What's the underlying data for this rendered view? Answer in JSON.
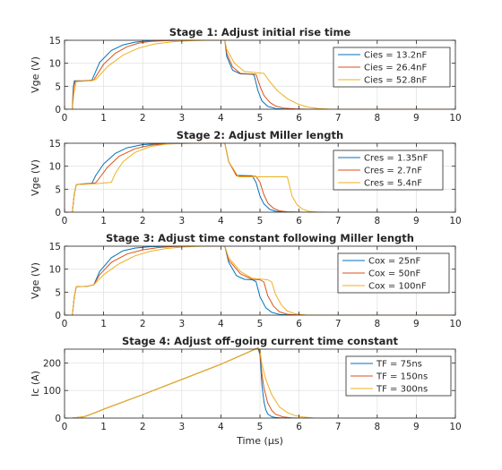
{
  "figure": {
    "xlabel": "Time (μs)",
    "background": "#ffffff",
    "axis_color": "#262626",
    "grid_color": "#e3e3e3",
    "series_colors": [
      "#0072bd",
      "#d95319",
      "#edb120"
    ]
  },
  "chart_data": [
    {
      "type": "line",
      "title": "Stage 1: Adjust initial rise time",
      "ylabel": "Vge (V)",
      "xlim": [
        0,
        10
      ],
      "ylim": [
        0,
        15
      ],
      "xticks": [
        0,
        1,
        2,
        3,
        4,
        5,
        6,
        7,
        8,
        9,
        10
      ],
      "yticks": [
        0,
        5,
        10,
        15
      ],
      "grid": true,
      "legend_position": "top-right",
      "series": [
        {
          "name": "Cies = 13.2nF",
          "x": [
            0,
            0.2,
            0.22,
            0.25,
            0.5,
            0.7,
            0.9,
            1.2,
            1.5,
            1.8,
            2.1,
            2.5,
            3,
            4.1,
            4.15,
            4.3,
            4.5,
            4.8,
            4.85,
            4.95,
            5.05,
            5.2,
            5.4,
            5.6,
            6,
            10
          ],
          "y": [
            0,
            0,
            4.5,
            6.2,
            6.2,
            6.3,
            10.2,
            12.8,
            14,
            14.6,
            14.85,
            14.95,
            15,
            15,
            11.5,
            8.5,
            7.7,
            7.6,
            7.4,
            4,
            1.8,
            0.6,
            0.15,
            0.05,
            0,
            0
          ]
        },
        {
          "name": "Cies = 26.4nF",
          "x": [
            0,
            0.2,
            0.23,
            0.27,
            0.6,
            0.75,
            1.0,
            1.3,
            1.6,
            1.9,
            2.2,
            2.6,
            3,
            4.1,
            4.15,
            4.3,
            4.5,
            4.9,
            5.0,
            5.1,
            5.25,
            5.4,
            5.6,
            5.9,
            6.2,
            10
          ],
          "y": [
            0,
            0,
            4.5,
            6.1,
            6.2,
            6.4,
            9.8,
            12.2,
            13.6,
            14.4,
            14.75,
            14.92,
            15,
            15,
            12.2,
            9.2,
            7.8,
            7.6,
            5,
            3,
            1.5,
            0.7,
            0.25,
            0.08,
            0,
            0
          ]
        },
        {
          "name": "Cies = 52.8nF",
          "x": [
            0,
            0.2,
            0.24,
            0.3,
            0.7,
            0.8,
            1.1,
            1.5,
            1.9,
            2.3,
            2.8,
            3.3,
            3.6,
            4.1,
            4.15,
            4.35,
            4.6,
            5.1,
            5.25,
            5.45,
            5.7,
            5.95,
            6.2,
            6.5,
            6.8,
            10
          ],
          "y": [
            0,
            0,
            3.5,
            6.0,
            6.2,
            6.5,
            9.3,
            11.8,
            13.3,
            14.2,
            14.7,
            14.92,
            15,
            15,
            13,
            10,
            8.2,
            7.8,
            6,
            4,
            2.3,
            1.2,
            0.5,
            0.15,
            0,
            0
          ]
        }
      ]
    },
    {
      "type": "line",
      "title": "Stage 2: Adjust Miller length",
      "ylabel": "Vge (V)",
      "xlim": [
        0,
        10
      ],
      "ylim": [
        0,
        15
      ],
      "xticks": [
        0,
        1,
        2,
        3,
        4,
        5,
        6,
        7,
        8,
        9,
        10
      ],
      "yticks": [
        0,
        5,
        10,
        15
      ],
      "grid": true,
      "legend_position": "top-right",
      "series": [
        {
          "name": "Cres = 1.35nF",
          "x": [
            0,
            0.2,
            0.25,
            0.3,
            0.5,
            0.7,
            0.8,
            1.0,
            1.3,
            1.6,
            2.0,
            2.5,
            3,
            4.1,
            4.2,
            4.4,
            4.8,
            4.9,
            5.0,
            5.1,
            5.25,
            5.4,
            5.6,
            6,
            10
          ],
          "y": [
            0,
            0,
            4,
            6,
            6.2,
            6.3,
            8,
            10.5,
            12.8,
            14,
            14.7,
            14.95,
            15,
            15,
            11,
            8.0,
            7.9,
            6.5,
            3.5,
            1.8,
            0.6,
            0.2,
            0.05,
            0,
            0
          ]
        },
        {
          "name": "Cres = 2.7nF",
          "x": [
            0,
            0.2,
            0.25,
            0.3,
            0.6,
            0.8,
            0.9,
            1.1,
            1.4,
            1.8,
            2.2,
            2.7,
            3.2,
            4.1,
            4.2,
            4.4,
            4.9,
            5.0,
            5.1,
            5.2,
            5.35,
            5.5,
            5.7,
            6.1,
            10
          ],
          "y": [
            0,
            0,
            4,
            6,
            6.2,
            6.4,
            7.5,
            9.8,
            12.2,
            13.8,
            14.6,
            14.92,
            15,
            15,
            11,
            7.9,
            7.8,
            6.5,
            3.8,
            2.0,
            0.8,
            0.3,
            0.08,
            0,
            0
          ]
        },
        {
          "name": "Cres = 5.4nF",
          "x": [
            0,
            0.2,
            0.25,
            0.3,
            0.8,
            1.2,
            1.3,
            1.5,
            1.8,
            2.2,
            2.6,
            3.0,
            3.3,
            4.1,
            4.2,
            4.45,
            5.7,
            5.75,
            5.82,
            5.95,
            6.1,
            6.25,
            6.45,
            6.8,
            10
          ],
          "y": [
            0,
            0,
            4,
            6,
            6.2,
            6.5,
            8.5,
            11,
            13,
            14.3,
            14.8,
            14.95,
            15,
            15,
            11,
            7.7,
            7.7,
            6,
            3.5,
            1.6,
            0.6,
            0.2,
            0.05,
            0,
            0
          ]
        }
      ]
    },
    {
      "type": "line",
      "title": "Stage 3: Adjust time constant following Miller length",
      "ylabel": "Vge (V)",
      "xlim": [
        0,
        10
      ],
      "ylim": [
        0,
        15
      ],
      "xticks": [
        0,
        1,
        2,
        3,
        4,
        5,
        6,
        7,
        8,
        9,
        10
      ],
      "yticks": [
        0,
        5,
        10,
        15
      ],
      "grid": true,
      "legend_position": "top-right",
      "series": [
        {
          "name": "Cox = 25nF",
          "x": [
            0,
            0.2,
            0.25,
            0.3,
            0.6,
            0.75,
            0.9,
            1.2,
            1.5,
            1.8,
            2.2,
            2.6,
            3.0,
            4.1,
            4.2,
            4.4,
            4.6,
            4.8,
            4.9,
            5.0,
            5.15,
            5.3,
            5.5,
            5.8,
            10
          ],
          "y": [
            0,
            0,
            4,
            6.2,
            6.3,
            6.6,
            9.5,
            12.5,
            14,
            14.6,
            14.9,
            14.97,
            15,
            15,
            11.5,
            8.6,
            7.8,
            7.7,
            7.3,
            4,
            1.6,
            0.6,
            0.15,
            0,
            0
          ]
        },
        {
          "name": "Cox = 50nF",
          "x": [
            0,
            0.2,
            0.25,
            0.3,
            0.6,
            0.75,
            0.9,
            1.2,
            1.6,
            2.0,
            2.4,
            2.8,
            3.2,
            4.1,
            4.2,
            4.5,
            4.8,
            5.0,
            5.1,
            5.2,
            5.35,
            5.5,
            5.7,
            6.0,
            10
          ],
          "y": [
            0,
            0,
            4,
            6.2,
            6.3,
            6.6,
            8.8,
            11.5,
            13.3,
            14.2,
            14.7,
            14.92,
            15,
            15,
            12,
            9.0,
            7.8,
            7.7,
            7.2,
            4.2,
            1.9,
            0.7,
            0.2,
            0,
            0
          ]
        },
        {
          "name": "Cox = 100nF",
          "x": [
            0,
            0.2,
            0.25,
            0.3,
            0.6,
            0.75,
            1.0,
            1.4,
            1.8,
            2.2,
            2.6,
            3.0,
            3.5,
            4.1,
            4.2,
            4.5,
            4.8,
            5.2,
            5.3,
            5.4,
            5.55,
            5.7,
            5.9,
            6.2,
            10
          ],
          "y": [
            0,
            0,
            4,
            6.2,
            6.3,
            6.6,
            8.8,
            11.2,
            12.9,
            13.9,
            14.5,
            14.8,
            15,
            15,
            12.5,
            9.5,
            8.0,
            7.7,
            7.2,
            4.5,
            2.2,
            0.9,
            0.3,
            0,
            0
          ]
        }
      ]
    },
    {
      "type": "line",
      "title": "Stage 4: Adjust off-going current time constant",
      "ylabel": "Ic (A)",
      "xlim": [
        0,
        10
      ],
      "ylim": [
        0,
        250
      ],
      "xticks": [
        0,
        1,
        2,
        3,
        4,
        5,
        6,
        7,
        8,
        9,
        10
      ],
      "yticks": [
        0,
        100,
        200
      ],
      "grid": true,
      "legend_position": "top-right",
      "series": [
        {
          "name": "TF = 75ns",
          "x": [
            0,
            0.2,
            0.5,
            0.7,
            1,
            2,
            3,
            4,
            4.8,
            4.95,
            5.0,
            5.05,
            5.1,
            5.15,
            5.2,
            5.3,
            5.4,
            5.6,
            5.8,
            10
          ],
          "y": [
            0,
            0,
            5,
            15,
            32,
            85,
            140,
            195,
            245,
            255,
            230,
            120,
            60,
            30,
            15,
            5,
            2,
            0,
            0,
            0
          ]
        },
        {
          "name": "TF = 150ns",
          "x": [
            0,
            0.2,
            0.5,
            0.7,
            1,
            2,
            3,
            4,
            4.8,
            4.95,
            5.0,
            5.05,
            5.1,
            5.2,
            5.3,
            5.4,
            5.6,
            5.8,
            6.0,
            10
          ],
          "y": [
            0,
            0,
            5,
            15,
            32,
            85,
            140,
            195,
            245,
            255,
            240,
            160,
            110,
            55,
            28,
            14,
            4,
            1,
            0,
            0
          ]
        },
        {
          "name": "TF = 300ns",
          "x": [
            0,
            0.2,
            0.5,
            0.7,
            1,
            2,
            3,
            4,
            4.8,
            4.95,
            5.0,
            5.05,
            5.15,
            5.3,
            5.5,
            5.7,
            5.9,
            6.1,
            6.4,
            10
          ],
          "y": [
            0,
            0,
            5,
            15,
            32,
            85,
            140,
            195,
            245,
            255,
            245,
            195,
            140,
            85,
            40,
            20,
            9,
            4,
            0,
            0
          ]
        }
      ]
    }
  ]
}
